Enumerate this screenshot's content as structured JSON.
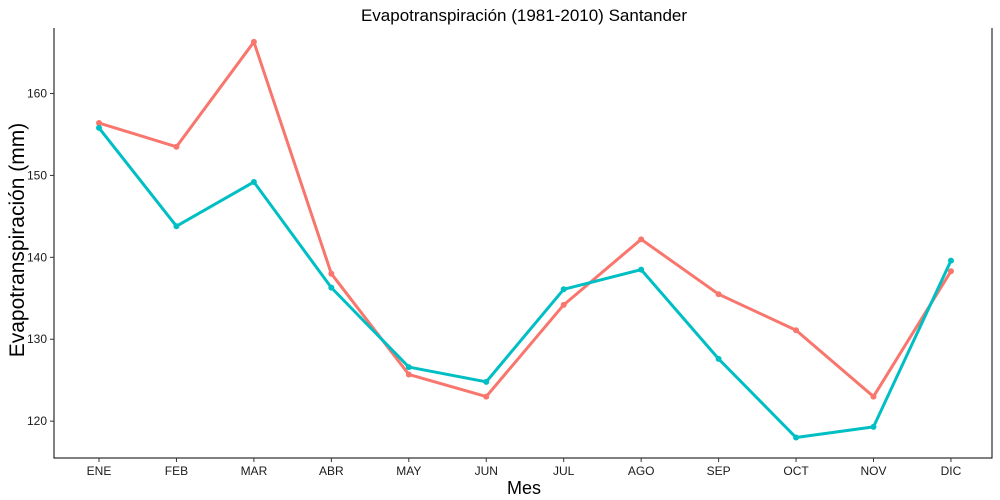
{
  "chart_data": {
    "type": "line",
    "title": "Evapotranspiración (1981-2010)  Santander",
    "xlabel": "Mes",
    "ylabel": "Evapotranspiración (mm)",
    "categories": [
      "ENE",
      "FEB",
      "MAR",
      "ABR",
      "MAY",
      "JUN",
      "JUL",
      "AGO",
      "SEP",
      "OCT",
      "NOV",
      "DIC"
    ],
    "ylim": [
      115.5,
      168
    ],
    "yticks": [
      120,
      130,
      140,
      150,
      160
    ],
    "grid": false,
    "legend": "none",
    "series": [
      {
        "color": "#F8766D",
        "values": [
          156.4,
          153.5,
          166.3,
          138.0,
          125.7,
          123.0,
          134.2,
          142.2,
          135.5,
          131.1,
          123.0,
          138.3
        ]
      },
      {
        "color": "#00BFC4",
        "values": [
          155.8,
          143.8,
          149.2,
          136.3,
          126.6,
          124.8,
          136.1,
          138.5,
          127.6,
          118.0,
          119.3,
          139.6
        ]
      }
    ]
  }
}
